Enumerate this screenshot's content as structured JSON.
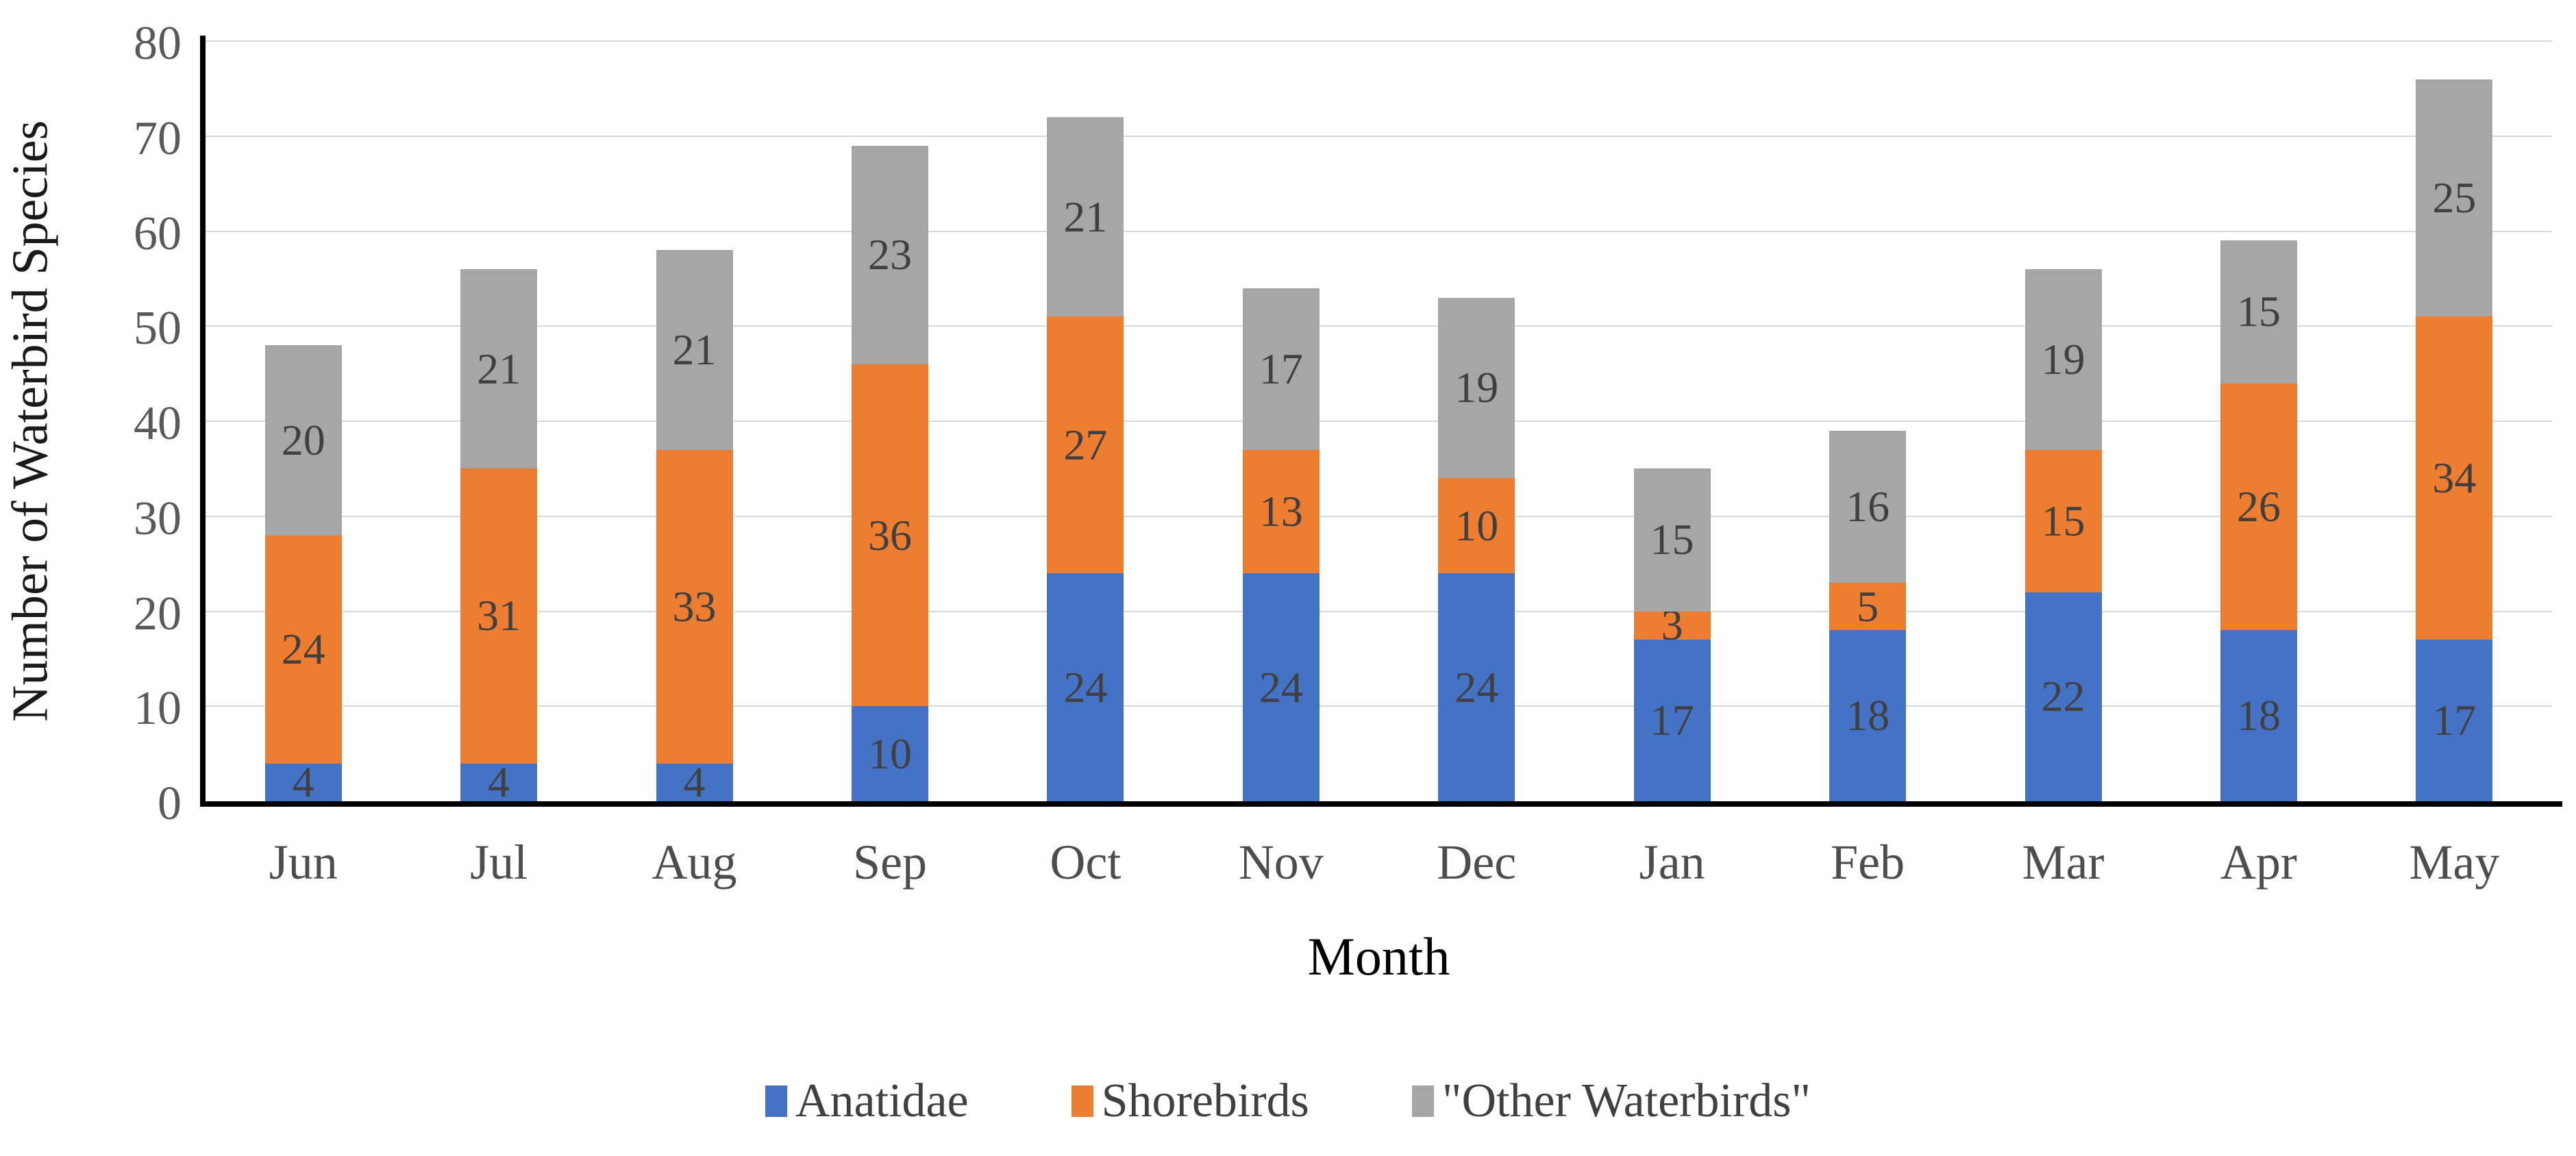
{
  "chart_data": {
    "type": "bar",
    "stacked": true,
    "title": "",
    "xlabel": "Month",
    "ylabel": "Number of Waterbird Species",
    "categories": [
      "Jun",
      "Jul",
      "Aug",
      "Sep",
      "Oct",
      "Nov",
      "Dec",
      "Jan",
      "Feb",
      "Mar",
      "Apr",
      "May"
    ],
    "series": [
      {
        "name": "Anatidae",
        "color": "#4472C4",
        "values": [
          4,
          4,
          4,
          10,
          24,
          24,
          24,
          17,
          18,
          22,
          18,
          17
        ]
      },
      {
        "name": "Shorebirds",
        "color": "#ED7D31",
        "values": [
          24,
          31,
          33,
          36,
          27,
          13,
          10,
          3,
          5,
          15,
          26,
          34
        ]
      },
      {
        "name": "\"Other Waterbirds\"",
        "color": "#A6A6A6",
        "values": [
          20,
          21,
          21,
          23,
          21,
          17,
          19,
          15,
          16,
          19,
          15,
          25
        ]
      }
    ],
    "totals": [
      48,
      56,
      58,
      69,
      72,
      54,
      53,
      35,
      39,
      56,
      59,
      76
    ],
    "ylim": [
      0,
      80
    ],
    "ytick_step": 10,
    "grid": true,
    "gridline_color": "#D9D9D9",
    "axis_line_color": "#000000",
    "tick_label_color": "#595959",
    "data_label_color": "#404040",
    "legend_position": "bottom"
  }
}
